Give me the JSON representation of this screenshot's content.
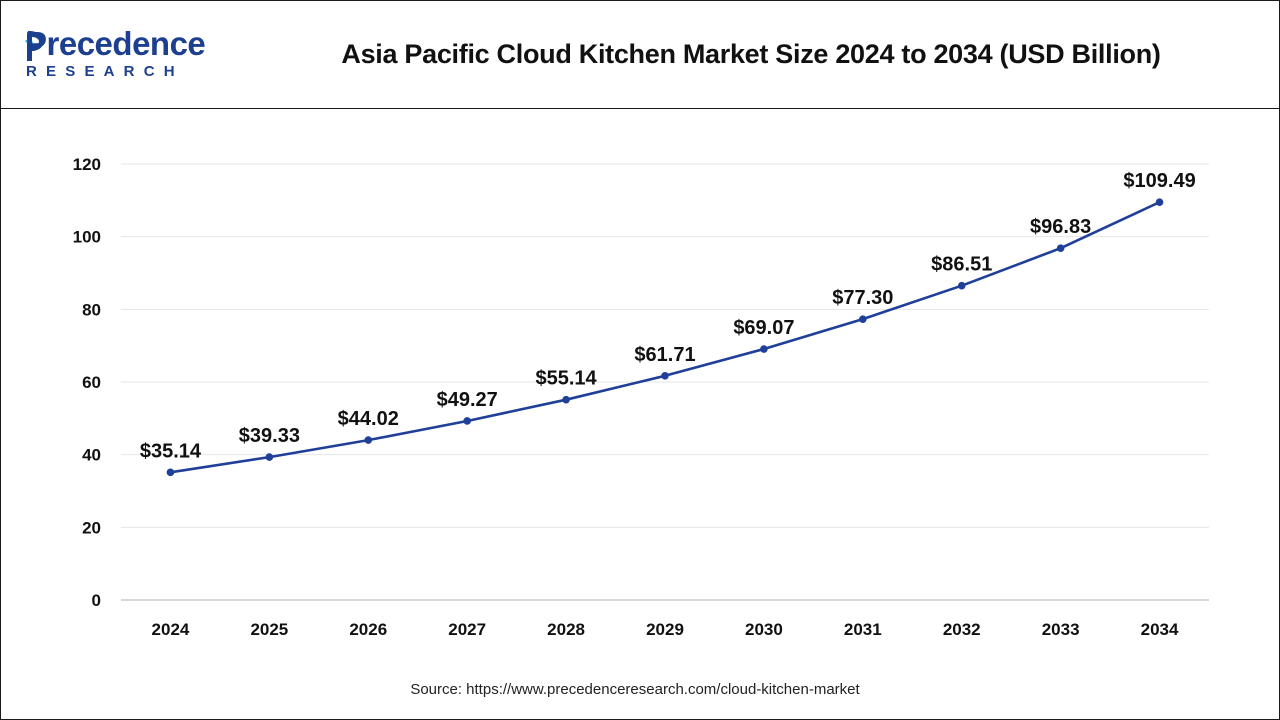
{
  "header": {
    "logo_text": "Precedence",
    "logo_subtext": "RESEARCH",
    "title": "Asia Pacific Cloud Kitchen Market Size 2024 to 2034 (USD Billion)"
  },
  "footer": {
    "source": "Source: https://www.precedenceresearch.com/cloud-kitchen-market"
  },
  "colors": {
    "line": "#1f3f99",
    "brand": "#1c3f8f",
    "grid": "#e6e6e6",
    "axis": "#bfbfbf"
  },
  "chart_data": {
    "type": "line",
    "title": "Asia Pacific Cloud Kitchen Market Size 2024 to 2034 (USD Billion)",
    "categories": [
      "2024",
      "2025",
      "2026",
      "2027",
      "2028",
      "2029",
      "2030",
      "2031",
      "2032",
      "2033",
      "2034"
    ],
    "series": [
      {
        "values": [
          35.14,
          39.33,
          44.02,
          49.27,
          55.14,
          61.71,
          69.07,
          77.3,
          86.51,
          96.83,
          109.49
        ],
        "data_labels": [
          "$35.14",
          "$39.33",
          "$44.02",
          "$49.27",
          "$55.14",
          "$61.71",
          "$69.07",
          "$77.30",
          "$86.51",
          "$96.83",
          "$109.49"
        ]
      }
    ],
    "ylim": [
      0,
      120
    ],
    "yticks": [
      "0",
      "20",
      "40",
      "60",
      "80",
      "100",
      "120"
    ],
    "grid": true,
    "legend": "none",
    "xlabel": "",
    "ylabel": ""
  }
}
